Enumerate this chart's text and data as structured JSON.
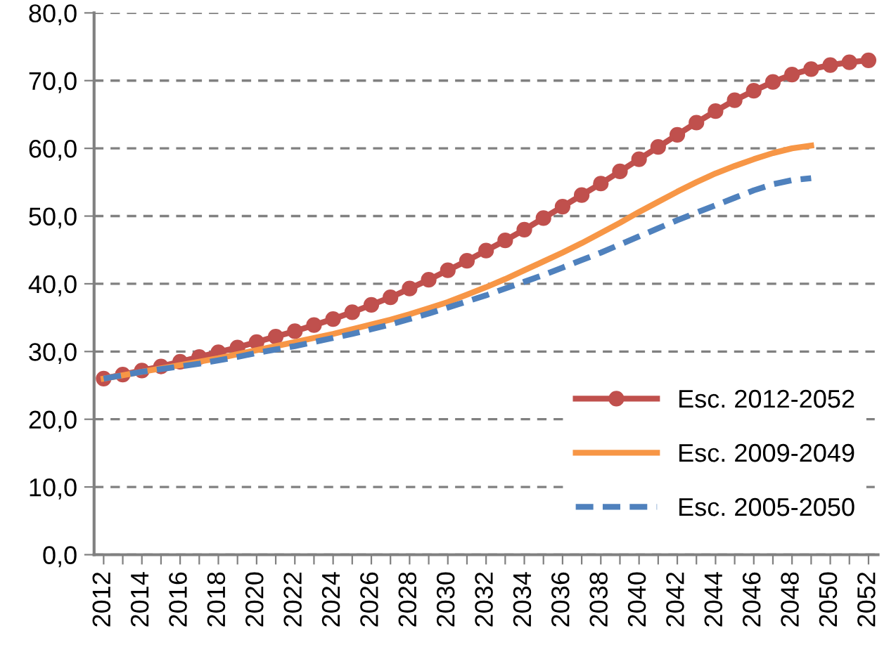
{
  "chart_data": {
    "type": "line",
    "x": [
      2012,
      2013,
      2014,
      2015,
      2016,
      2017,
      2018,
      2019,
      2020,
      2021,
      2022,
      2023,
      2024,
      2025,
      2026,
      2027,
      2028,
      2029,
      2030,
      2031,
      2032,
      2033,
      2034,
      2035,
      2036,
      2037,
      2038,
      2039,
      2040,
      2041,
      2042,
      2043,
      2044,
      2045,
      2046,
      2047,
      2048,
      2049,
      2050,
      2051,
      2052
    ],
    "series": [
      {
        "name": "Esc. 2012-2052",
        "color": "#c0504d",
        "marker": "circle",
        "line_style": "solid",
        "values": [
          26.0,
          26.6,
          27.2,
          27.8,
          28.5,
          29.2,
          29.9,
          30.6,
          31.4,
          32.2,
          33.0,
          33.9,
          34.8,
          35.8,
          36.9,
          38.0,
          39.3,
          40.6,
          42.0,
          43.4,
          44.9,
          46.4,
          48.0,
          49.7,
          51.4,
          53.1,
          54.8,
          56.6,
          58.4,
          60.2,
          62.0,
          63.8,
          65.5,
          67.1,
          68.5,
          69.8,
          70.9,
          71.7,
          72.3,
          72.7,
          73.0
        ]
      },
      {
        "name": "Esc. 2009-2049",
        "color": "#f79646",
        "marker": "none",
        "line_style": "solid",
        "values": [
          26.0,
          26.5,
          27.0,
          27.5,
          28.0,
          28.5,
          29.0,
          29.6,
          30.2,
          30.8,
          31.4,
          32.0,
          32.6,
          33.3,
          34.0,
          34.7,
          35.5,
          36.4,
          37.3,
          38.4,
          39.5,
          40.7,
          42.0,
          43.3,
          44.6,
          46.0,
          47.5,
          49.0,
          50.6,
          52.1,
          53.6,
          55.0,
          56.3,
          57.4,
          58.4,
          59.3,
          60.0,
          60.4,
          null,
          null,
          null
        ]
      },
      {
        "name": "Esc. 2005-2050",
        "color": "#4f81bd",
        "marker": "none",
        "line_style": "dashed",
        "values": [
          26.0,
          26.5,
          27.0,
          27.4,
          27.8,
          28.2,
          28.7,
          29.2,
          29.8,
          30.3,
          30.8,
          31.4,
          32.0,
          32.6,
          33.3,
          34.0,
          34.8,
          35.6,
          36.5,
          37.4,
          38.3,
          39.3,
          40.3,
          41.3,
          42.4,
          43.5,
          44.6,
          45.8,
          47.0,
          48.2,
          49.4,
          50.5,
          51.6,
          52.7,
          53.8,
          54.7,
          55.3,
          55.6,
          null,
          null,
          null
        ]
      }
    ],
    "xlim": [
      2011.5,
      2052.5
    ],
    "xticks": [
      2012,
      {
        "value": 2013,
        "label": null
      },
      2014,
      {
        "value": 2015,
        "label": null
      },
      2016,
      {
        "value": 2017,
        "label": null
      },
      2018,
      {
        "value": 2019,
        "label": null
      },
      2020,
      {
        "value": 2021,
        "label": null
      },
      2022,
      {
        "value": 2023,
        "label": null
      },
      2024,
      {
        "value": 2025,
        "label": null
      },
      2026,
      {
        "value": 2027,
        "label": null
      },
      2028,
      {
        "value": 2029,
        "label": null
      },
      2030,
      {
        "value": 2031,
        "label": null
      },
      2032,
      {
        "value": 2033,
        "label": null
      },
      2034,
      {
        "value": 2035,
        "label": null
      },
      2036,
      {
        "value": 2037,
        "label": null
      },
      2038,
      {
        "value": 2039,
        "label": null
      },
      2040,
      {
        "value": 2041,
        "label": null
      },
      2042,
      {
        "value": 2043,
        "label": null
      },
      2044,
      {
        "value": 2045,
        "label": null
      },
      2046,
      {
        "value": 2047,
        "label": null
      },
      2048,
      {
        "value": 2049,
        "label": null
      },
      2050,
      {
        "value": 2051,
        "label": null
      },
      2052
    ],
    "ylim": [
      0,
      80
    ],
    "yticks": [
      {
        "value": 0,
        "label": "0,0"
      },
      {
        "value": 10,
        "label": "10,0"
      },
      {
        "value": 20,
        "label": "20,0"
      },
      {
        "value": 30,
        "label": "30,0"
      },
      {
        "value": 40,
        "label": "40,0"
      },
      {
        "value": 50,
        "label": "50,0"
      },
      {
        "value": 60,
        "label": "60,0"
      },
      {
        "value": 70,
        "label": "70,0"
      },
      {
        "value": 80,
        "label": "80,0"
      }
    ],
    "grid": "y",
    "legend": "lower right"
  }
}
